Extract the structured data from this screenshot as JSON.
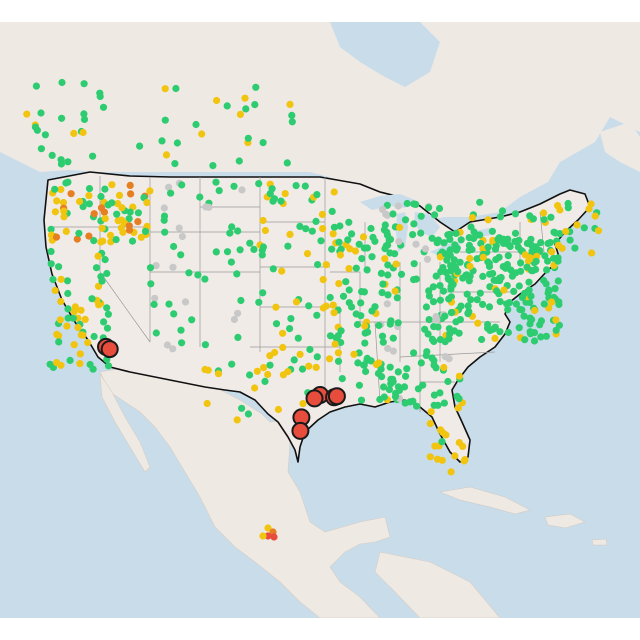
{
  "map": {
    "description_colors": {
      "water": "#c9dcea",
      "land": "#efe9e3",
      "good": "#2ecc71",
      "moderate": "#f1c40f",
      "usg": "#e67e22",
      "unhealthy": "#e74c3c",
      "nodata": "#c8c8c8"
    },
    "large_markers": [
      {
        "lon": -118.3,
        "lat": 34.1,
        "status": "unhealthy"
      },
      {
        "lon": -117.9,
        "lat": 33.9,
        "status": "unhealthy"
      },
      {
        "lon": -95.4,
        "lat": 29.8,
        "status": "unhealthy"
      },
      {
        "lon": -96.0,
        "lat": 29.5,
        "status": "unhealthy"
      },
      {
        "lon": -93.9,
        "lat": 29.6,
        "status": "unhealthy"
      },
      {
        "lon": -93.6,
        "lat": 29.7,
        "status": "unhealthy"
      },
      {
        "lon": -97.4,
        "lat": 27.8,
        "status": "unhealthy"
      },
      {
        "lon": -97.5,
        "lat": 26.6,
        "status": "unhealthy"
      }
    ]
  }
}
